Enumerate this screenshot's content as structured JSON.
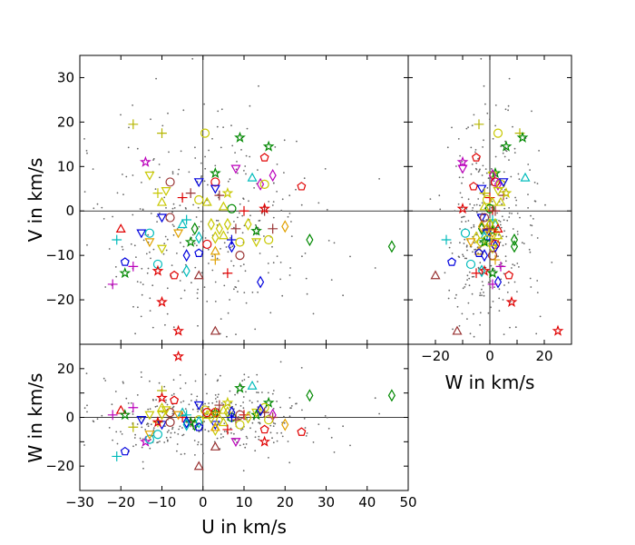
{
  "chart_data": [
    {
      "panel": "U-V",
      "type": "scatter",
      "xlim": [
        -30,
        50
      ],
      "ylim": [
        -30,
        35
      ],
      "xlabel": "",
      "ylabel": "V in km/s",
      "x_ticks": [],
      "y_ticks": [
        -20,
        -10,
        0,
        10,
        20,
        30
      ],
      "grid": false,
      "zero_lines": true
    },
    {
      "panel": "W-V",
      "type": "scatter",
      "xlim": [
        -30,
        30
      ],
      "ylim": [
        -30,
        35
      ],
      "xlabel": "W in km/s",
      "ylabel": "",
      "x_ticks": [
        -20,
        0,
        20
      ],
      "y_ticks": [],
      "grid": false,
      "zero_lines": true
    },
    {
      "panel": "U-W",
      "type": "scatter",
      "xlim": [
        -30,
        50
      ],
      "ylim": [
        -30,
        30
      ],
      "xlabel": "U in km/s",
      "ylabel": "W in km/s",
      "x_ticks": [
        -30,
        -20,
        -10,
        0,
        10,
        20,
        30,
        40,
        50
      ],
      "y_ticks": [
        -20,
        0,
        20
      ],
      "grid": false,
      "zero_lines": true
    }
  ],
  "markers": [
    {
      "u": -17,
      "v": 19.5,
      "w": -4,
      "shape": "plus",
      "color": "#b5b500"
    },
    {
      "u": -10,
      "v": 17.5,
      "w": 11,
      "shape": "plus",
      "color": "#b5b500"
    },
    {
      "u": 0.5,
      "v": 17.5,
      "w": 3,
      "shape": "circle",
      "color": "#c8c800"
    },
    {
      "u": 9,
      "v": 16.5,
      "w": 12,
      "shape": "star",
      "color": "#008800"
    },
    {
      "u": 16,
      "v": 14.5,
      "w": 6,
      "shape": "star",
      "color": "#008800"
    },
    {
      "u": 15,
      "v": 12,
      "w": -5,
      "shape": "pentagon",
      "color": "#e00000"
    },
    {
      "u": -14,
      "v": 11,
      "w": -10,
      "shape": "star",
      "color": "#bb00bb"
    },
    {
      "u": 8,
      "v": 9.5,
      "w": -10,
      "shape": "triangle-down",
      "color": "#bb00bb"
    },
    {
      "u": 12,
      "v": 7.5,
      "w": 13,
      "shape": "triangle-up",
      "color": "#00bbbb"
    },
    {
      "u": 3,
      "v": 8.5,
      "w": 2,
      "shape": "star",
      "color": "#008800"
    },
    {
      "u": -13,
      "v": 8,
      "w": 1,
      "shape": "triangle-down",
      "color": "#c8c800"
    },
    {
      "u": 17,
      "v": 8,
      "w": 1,
      "shape": "diamond",
      "color": "#bb00bb"
    },
    {
      "u": -8,
      "v": 6.5,
      "w": 2,
      "shape": "circle",
      "color": "#993333"
    },
    {
      "u": 3,
      "v": 6.5,
      "w": 2,
      "shape": "circle",
      "color": "#e00000"
    },
    {
      "u": 14,
      "v": 6,
      "w": 3,
      "shape": "diamond",
      "color": "#bb00bb"
    },
    {
      "u": 15,
      "v": 6,
      "w": 4,
      "shape": "circle",
      "color": "#c8c800"
    },
    {
      "u": 24,
      "v": 5.5,
      "w": -6,
      "shape": "pentagon",
      "color": "#e00000"
    },
    {
      "u": -1,
      "v": 6.5,
      "w": 5,
      "shape": "triangle-down",
      "color": "#0000dd"
    },
    {
      "u": 3,
      "v": 5,
      "w": -3,
      "shape": "triangle-down",
      "color": "#0000dd"
    },
    {
      "u": -9,
      "v": 4.5,
      "w": 3,
      "shape": "triangle-down",
      "color": "#c8c800"
    },
    {
      "u": -3,
      "v": 4,
      "w": -2,
      "shape": "plus",
      "color": "#993333"
    },
    {
      "u": 4,
      "v": 3.5,
      "w": 5,
      "shape": "plus",
      "color": "#993333"
    },
    {
      "u": 6,
      "v": 4,
      "w": 6,
      "shape": "star",
      "color": "#c8c800"
    },
    {
      "u": -5,
      "v": 3,
      "w": 0,
      "shape": "plus",
      "color": "#e00000"
    },
    {
      "u": -1,
      "v": 2.5,
      "w": -1,
      "shape": "circle",
      "color": "#c8c800"
    },
    {
      "u": 1,
      "v": 2,
      "w": 1,
      "shape": "triangle-up",
      "color": "#c8c800"
    },
    {
      "u": -10,
      "v": 2,
      "w": 4,
      "shape": "triangle-up",
      "color": "#c8c800"
    },
    {
      "u": -11,
      "v": 4,
      "w": -2,
      "shape": "plus",
      "color": "#c8c800"
    },
    {
      "u": 7,
      "v": 0.5,
      "w": 0,
      "shape": "circle",
      "color": "#008800"
    },
    {
      "u": 10,
      "v": 0,
      "w": 1,
      "shape": "plus",
      "color": "#e00000"
    },
    {
      "u": 15,
      "v": 0,
      "w": 2,
      "shape": "plus",
      "color": "#993333"
    },
    {
      "u": 5,
      "v": 1,
      "w": -2,
      "shape": "triangle-up",
      "color": "#c8c800"
    },
    {
      "u": -10,
      "v": -1.5,
      "w": -3,
      "shape": "triangle-down",
      "color": "#0000dd"
    },
    {
      "u": -8,
      "v": -1.5,
      "w": -2,
      "shape": "circle",
      "color": "#993333"
    },
    {
      "u": -5,
      "v": -3,
      "w": 2,
      "shape": "triangle-up",
      "color": "#00bbbb"
    },
    {
      "u": -4,
      "v": -2,
      "w": 1,
      "shape": "plus",
      "color": "#00bbbb"
    },
    {
      "u": -2,
      "v": -4,
      "w": -3,
      "shape": "diamond",
      "color": "#008800"
    },
    {
      "u": 2,
      "v": -3,
      "w": 0,
      "shape": "diamond",
      "color": "#c8c800"
    },
    {
      "u": 4,
      "v": -4,
      "w": -1,
      "shape": "diamond",
      "color": "#c8c800"
    },
    {
      "u": 6,
      "v": -3,
      "w": 2,
      "shape": "diamond",
      "color": "#c8c800"
    },
    {
      "u": 8,
      "v": -4,
      "w": -1,
      "shape": "plus",
      "color": "#993333"
    },
    {
      "u": 11,
      "v": -3,
      "w": 0,
      "shape": "diamond",
      "color": "#c8c800"
    },
    {
      "u": 13,
      "v": -4.5,
      "w": 1,
      "shape": "star",
      "color": "#008800"
    },
    {
      "u": 17,
      "v": -4,
      "w": 0,
      "shape": "plus",
      "color": "#993333"
    },
    {
      "u": 20,
      "v": -3.5,
      "w": -3,
      "shape": "diamond",
      "color": "#e0a000"
    },
    {
      "u": -15,
      "v": -5,
      "w": -1,
      "shape": "triangle-down",
      "color": "#0000dd"
    },
    {
      "u": -13,
      "v": -5,
      "w": -9,
      "shape": "circle",
      "color": "#00bbbb"
    },
    {
      "u": -6,
      "v": -5,
      "w": 1,
      "shape": "triangle-down",
      "color": "#e0a000"
    },
    {
      "u": -1,
      "v": -6,
      "w": -2,
      "shape": "diamond",
      "color": "#00bbbb"
    },
    {
      "u": 3,
      "v": -6,
      "w": -5,
      "shape": "diamond",
      "color": "#c8c800"
    },
    {
      "u": 5,
      "v": -5.5,
      "w": 3,
      "shape": "triangle-up",
      "color": "#c8c800"
    },
    {
      "u": 7,
      "v": -6.5,
      "w": 0,
      "shape": "plus",
      "color": "#0000dd"
    },
    {
      "u": 9,
      "v": -7,
      "w": -3,
      "shape": "circle",
      "color": "#c8c800"
    },
    {
      "u": 13,
      "v": -7,
      "w": 2,
      "shape": "triangle-down",
      "color": "#c8c800"
    },
    {
      "u": 16,
      "v": -6.5,
      "w": -1,
      "shape": "circle",
      "color": "#c8c800"
    },
    {
      "u": 26,
      "v": -6.5,
      "w": 9,
      "shape": "diamond",
      "color": "#008800"
    },
    {
      "u": 46,
      "v": -8,
      "w": 9,
      "shape": "diamond",
      "color": "#008800"
    },
    {
      "u": -21,
      "v": -6.5,
      "w": -16,
      "shape": "plus",
      "color": "#00bbbb"
    },
    {
      "u": -20,
      "v": -4,
      "w": 3,
      "shape": "triangle-up",
      "color": "#e00000"
    },
    {
      "u": -13,
      "v": -7,
      "w": -7,
      "shape": "triangle-down",
      "color": "#e0a000"
    },
    {
      "u": -3,
      "v": -7,
      "w": -2,
      "shape": "star",
      "color": "#008800"
    },
    {
      "u": 1,
      "v": -7.5,
      "w": 2,
      "shape": "circle",
      "color": "#e00000"
    },
    {
      "u": 3,
      "v": -9,
      "w": -4,
      "shape": "triangle-up",
      "color": "#e0a000"
    },
    {
      "u": 7,
      "v": -8,
      "w": 2,
      "shape": "diamond",
      "color": "#0000dd"
    },
    {
      "u": -10,
      "v": -8.5,
      "w": 1,
      "shape": "triangle-down",
      "color": "#c8c800"
    },
    {
      "u": -1,
      "v": -9.5,
      "w": -4,
      "shape": "pentagon",
      "color": "#0000dd"
    },
    {
      "u": 9,
      "v": -10,
      "w": 1,
      "shape": "circle",
      "color": "#993333"
    },
    {
      "u": -4,
      "v": -10,
      "w": -2,
      "shape": "diamond",
      "color": "#0000dd"
    },
    {
      "u": 3,
      "v": -11,
      "w": 2,
      "shape": "plus",
      "color": "#e0a000"
    },
    {
      "u": -19,
      "v": -11.5,
      "w": -14,
      "shape": "pentagon",
      "color": "#0000dd"
    },
    {
      "u": -17,
      "v": -12.5,
      "w": 4,
      "shape": "plus",
      "color": "#bb00bb"
    },
    {
      "u": -11,
      "v": -12,
      "w": -7,
      "shape": "circle",
      "color": "#00bbbb"
    },
    {
      "u": -19,
      "v": -14,
      "w": 1,
      "shape": "star",
      "color": "#008800"
    },
    {
      "u": -11,
      "v": -13.5,
      "w": -2,
      "shape": "star",
      "color": "#e00000"
    },
    {
      "u": -4,
      "v": -13.5,
      "w": -3,
      "shape": "diamond",
      "color": "#00bbbb"
    },
    {
      "u": -7,
      "v": -14.5,
      "w": 7,
      "shape": "pentagon",
      "color": "#e00000"
    },
    {
      "u": -1,
      "v": -14.5,
      "w": -20,
      "shape": "triangle-up",
      "color": "#993333"
    },
    {
      "u": 6,
      "v": -14,
      "w": -5,
      "shape": "plus",
      "color": "#e00000"
    },
    {
      "u": 14,
      "v": -16,
      "w": 3,
      "shape": "diamond",
      "color": "#0000dd"
    },
    {
      "u": -22,
      "v": -16.5,
      "w": 1,
      "shape": "plus",
      "color": "#bb00bb"
    },
    {
      "u": -10,
      "v": -20.5,
      "w": 8,
      "shape": "star",
      "color": "#e00000"
    },
    {
      "u": -6,
      "v": -27,
      "w": 25,
      "shape": "star",
      "color": "#e00000"
    },
    {
      "u": 3,
      "v": -27,
      "w": -12,
      "shape": "triangle-up",
      "color": "#993333"
    },
    {
      "u": 15,
      "v": 0.5,
      "w": -10,
      "shape": "star",
      "color": "#e00000"
    }
  ]
}
